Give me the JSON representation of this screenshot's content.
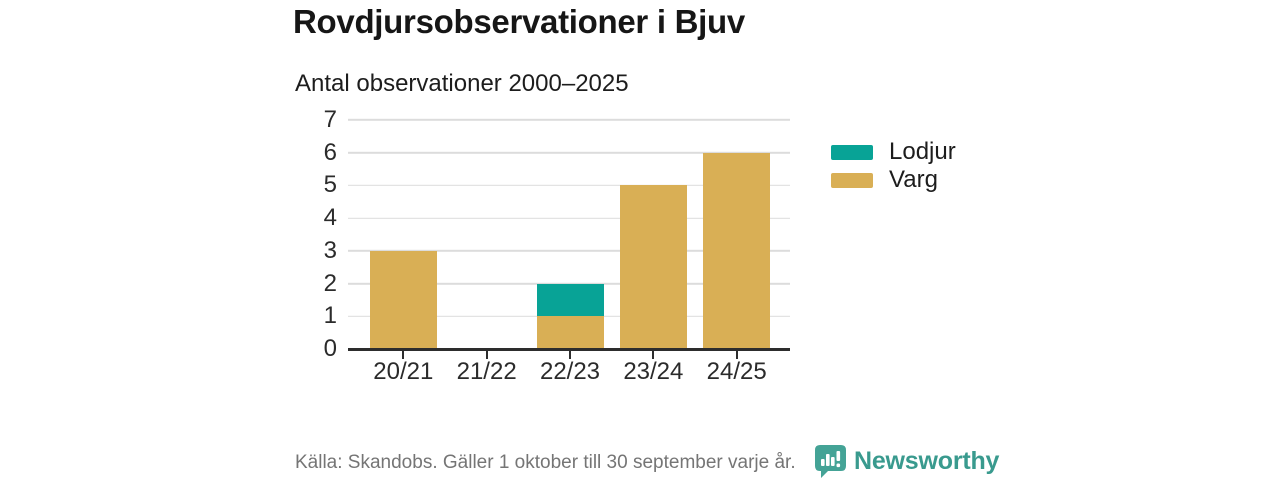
{
  "title": "Rovdjursobservationer i Bjuv",
  "subtitle": "Antal observationer 2000–2025",
  "chart_data": {
    "type": "bar",
    "stacked": true,
    "title": "Rovdjursobservationer i Bjuv",
    "subtitle": "Antal observationer 2000–2025",
    "categories": [
      "20/21",
      "21/22",
      "22/23",
      "23/24",
      "24/25"
    ],
    "series": [
      {
        "name": "Varg",
        "color": "#d9af55",
        "values": [
          3,
          0,
          1,
          5,
          6
        ]
      },
      {
        "name": "Lodjur",
        "color": "#08a396",
        "values": [
          0,
          0,
          1,
          0,
          0
        ]
      }
    ],
    "totals": [
      3,
      0,
      2,
      5,
      6
    ],
    "xlabel": "",
    "ylabel": "",
    "ylim": [
      0,
      7
    ],
    "yticks": [
      0,
      1,
      2,
      3,
      4,
      5,
      6,
      7
    ],
    "grid": true,
    "gridline_color": "#dcdcdc",
    "axis_color": "#2d2d2d",
    "legend_position": "right-top"
  },
  "legend": {
    "items": [
      {
        "label": "Lodjur",
        "color": "#08a396"
      },
      {
        "label": "Varg",
        "color": "#d9af55"
      }
    ]
  },
  "footer": {
    "source": "Källa: Skandobs. Gäller 1 oktober till 30 september varje år.",
    "brand": "Newsworthy",
    "brand_color": "#399a8e",
    "logo_icon_color": "#44a396",
    "logo_icon": "speech-bubble-bar-chart"
  }
}
